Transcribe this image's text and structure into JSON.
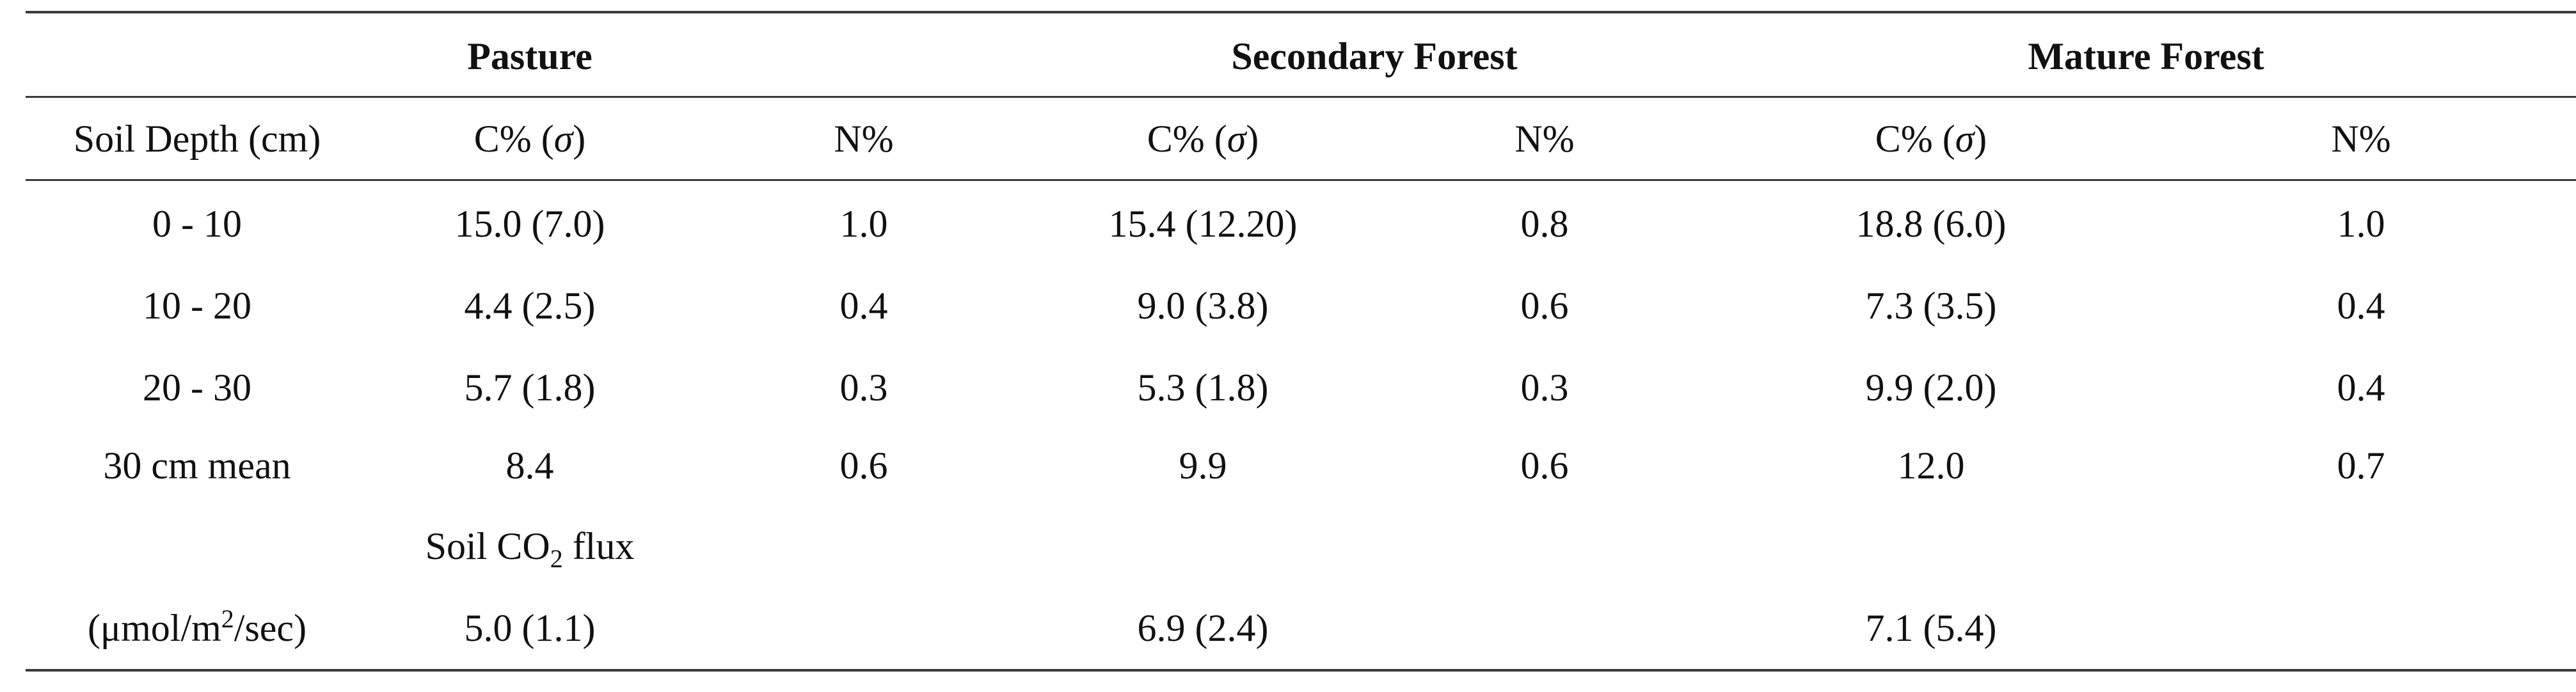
{
  "table": {
    "groups": [
      "Pasture",
      "Secondary Forest",
      "Mature Forest"
    ],
    "headers": [
      "Soil Depth (cm)",
      "C% (",
      "σ",
      ")",
      "N%"
    ],
    "rows": [
      {
        "depth": "0 - 10",
        "pC": "15.0 (7.0)",
        "pN": "1.0",
        "sC": "15.4 (12.20)",
        "sN": "0.8",
        "mC": "18.8 (6.0)",
        "mN": "1.0"
      },
      {
        "depth": "10 - 20",
        "pC": "4.4 (2.5)",
        "pN": "0.4",
        "sC": "9.0 (3.8)",
        "sN": "0.6",
        "mC": "7.3 (3.5)",
        "mN": "0.4"
      },
      {
        "depth": "20 - 30",
        "pC": "5.7 (1.8)",
        "pN": "0.3",
        "sC": "5.3 (1.8)",
        "sN": "0.3",
        "mC": "9.9 (2.0)",
        "mN": "0.4"
      },
      {
        "depth": "30 cm mean",
        "pC": "8.4",
        "pN": "0.6",
        "sC": "9.9",
        "sN": "0.6",
        "mC": "12.0",
        "mN": "0.7"
      }
    ],
    "flux": {
      "label_pre": "Soil CO",
      "label_sub": "2",
      "label_post": " flux",
      "unit_pre": "(μmol/m",
      "unit_sup": "2",
      "unit_post": "/sec)",
      "pasture": "5.0 (1.1)",
      "secondary": "6.9 (2.4)",
      "mature": "7.1 (5.4)"
    }
  }
}
